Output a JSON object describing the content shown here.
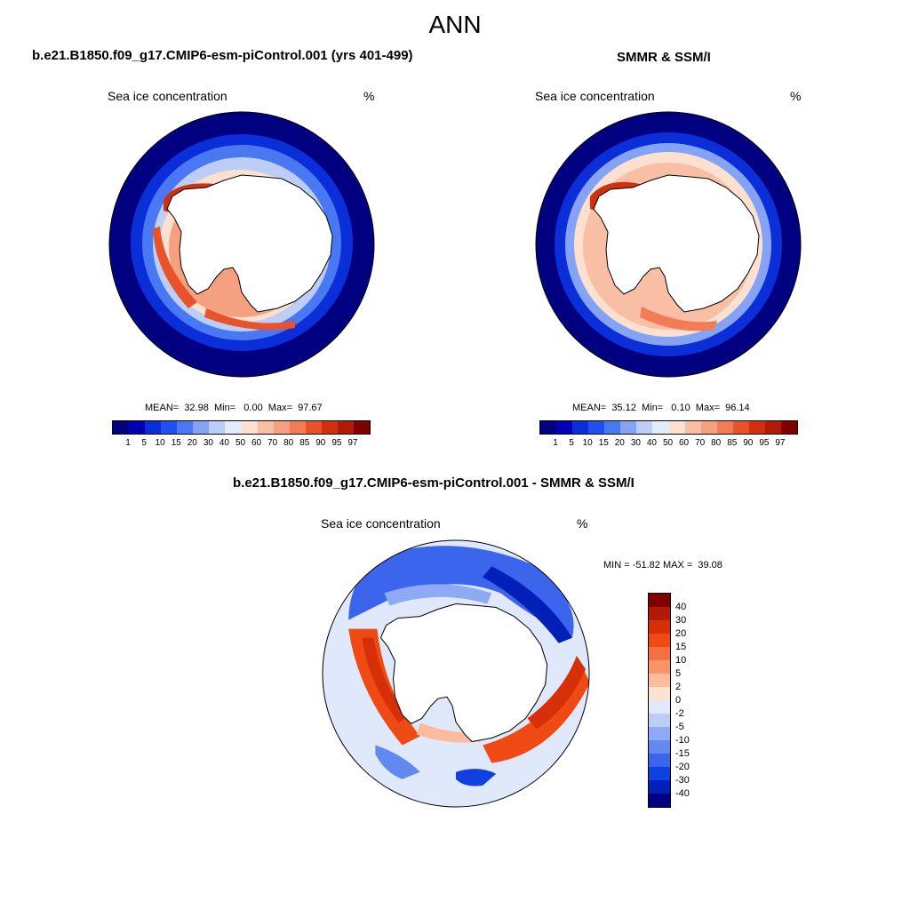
{
  "page_title": "ANN",
  "panels": [
    {
      "title": "b.e21.B1850.f09_g17.CMIP6-esm-piControl.001 (yrs 401-499)",
      "variable": "Sea ice concentration",
      "units": "%",
      "stats": "MEAN=  32.98  Min=   0.00  Max=  97.67"
    },
    {
      "title": "SMMR & SSM/I",
      "variable": "Sea ice concentration",
      "units": "%",
      "stats": "MEAN=  35.12  Min=   0.10  Max=  96.14"
    },
    {
      "title": "b.e21.B1850.f09_g17.CMIP6-esm-piControl.001 - SMMR & SSM/I",
      "variable": "Sea ice concentration",
      "units": "%",
      "stats": "MIN = -51.82 MAX =  39.08"
    }
  ],
  "colorbar_abs": {
    "ticks": [
      "1",
      "5",
      "10",
      "15",
      "20",
      "30",
      "40",
      "50",
      "60",
      "70",
      "80",
      "85",
      "90",
      "95",
      "97"
    ],
    "colors": [
      "#000080",
      "#0000b2",
      "#0a2fd9",
      "#2050ee",
      "#4a78f2",
      "#85a3f4",
      "#bccdf6",
      "#e2ecfa",
      "#fde0cf",
      "#f9bfa4",
      "#f5a07e",
      "#f27c55",
      "#e8532c",
      "#d0300f",
      "#b01a06",
      "#800000"
    ]
  },
  "colorbar_diff": {
    "ticks": [
      "40",
      "30",
      "20",
      "15",
      "10",
      "5",
      "2",
      "0",
      "-2",
      "-5",
      "-10",
      "-15",
      "-20",
      "-30",
      "-40"
    ],
    "colors": [
      "#800000",
      "#b01a06",
      "#d53008",
      "#f04a14",
      "#f57040",
      "#f8946a",
      "#fbbb9c",
      "#fde2cf",
      "#dfe9fb",
      "#bccdf6",
      "#8eaaf4",
      "#6289f0",
      "#3a65ec",
      "#1040e0",
      "#0020b8",
      "#000080"
    ]
  }
}
